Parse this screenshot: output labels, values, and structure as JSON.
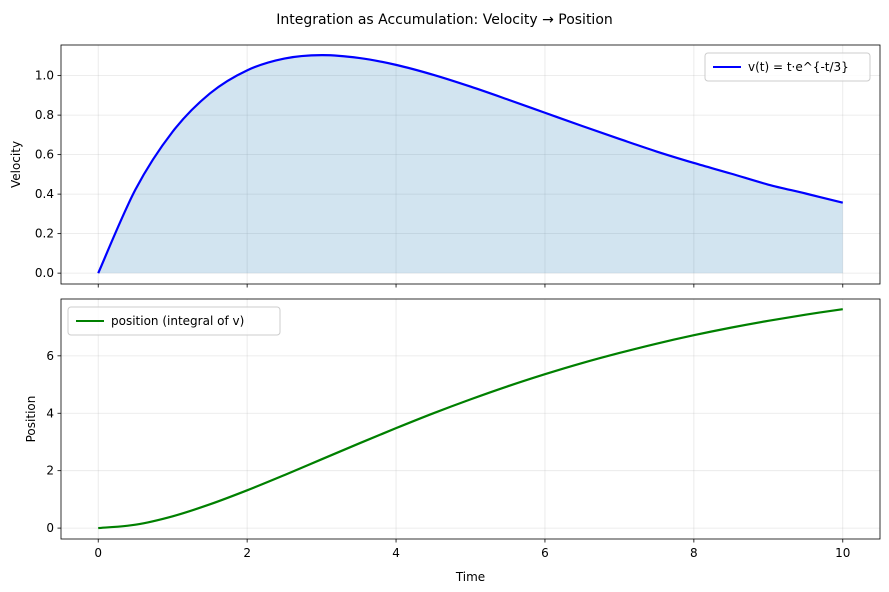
{
  "chart_data": {
    "type": "line",
    "title": "Integration as Accumulation: Velocity → Position",
    "xlabel": "Time",
    "xlim": [
      -0.5,
      10.5
    ],
    "xticks": [
      "0",
      "2",
      "4",
      "6",
      "8",
      "10"
    ],
    "xtick_values": [
      0,
      2,
      4,
      6,
      8,
      10
    ],
    "panels": [
      {
        "ylabel": "Velocity",
        "ylim": [
          -0.055,
          1.155
        ],
        "yticks": [
          "0.0",
          "0.2",
          "0.4",
          "0.6",
          "0.8",
          "1.0"
        ],
        "ytick_values": [
          0.0,
          0.2,
          0.4,
          0.6,
          0.8,
          1.0
        ],
        "grid": true,
        "legend_position": "upper right",
        "fill_under": true,
        "series": [
          {
            "name": "v(t) = t·e^{-t/3}",
            "color": "#0000ff",
            "fill_color": "#1f77b4",
            "x": [
              0,
              0.5,
              1,
              1.5,
              2,
              2.5,
              3,
              3.5,
              4,
              4.5,
              5,
              5.5,
              6,
              6.5,
              7,
              7.5,
              8,
              8.5,
              9,
              9.5,
              10
            ],
            "values": [
              0,
              0.4232,
              0.7165,
              0.9098,
              1.0268,
              1.0863,
              1.1036,
              1.0894,
              1.0544,
              1.0041,
              0.9444,
              0.8792,
              0.812,
              0.7448,
              0.6795,
              0.6157,
              0.5578,
              0.5038,
              0.4481,
              0.4032,
              0.3567
            ]
          }
        ]
      },
      {
        "ylabel": "Position",
        "ylim": [
          -0.38,
          7.98
        ],
        "yticks": [
          "0",
          "2",
          "4",
          "6"
        ],
        "ytick_values": [
          0,
          2,
          4,
          6
        ],
        "grid": true,
        "legend_position": "upper left",
        "fill_under": false,
        "series": [
          {
            "name": "position (integral of v)",
            "color": "#008000",
            "x": [
              0,
              0.5,
              1,
              1.5,
              2,
              2.5,
              3,
              3.5,
              4,
              4.5,
              5,
              5.5,
              6,
              6.5,
              7,
              7.5,
              8,
              8.5,
              9,
              9.5,
              10
            ],
            "values": [
              0,
              0.1174,
              0.4111,
              0.8273,
              1.3157,
              1.8454,
              2.3954,
              2.9448,
              3.4812,
              3.9983,
              4.4839,
              4.9399,
              5.3606,
              5.7492,
              6.1007,
              6.4247,
              6.7184,
              6.9832,
              7.2212,
              7.4343,
              7.6254
            ]
          }
        ]
      }
    ]
  }
}
